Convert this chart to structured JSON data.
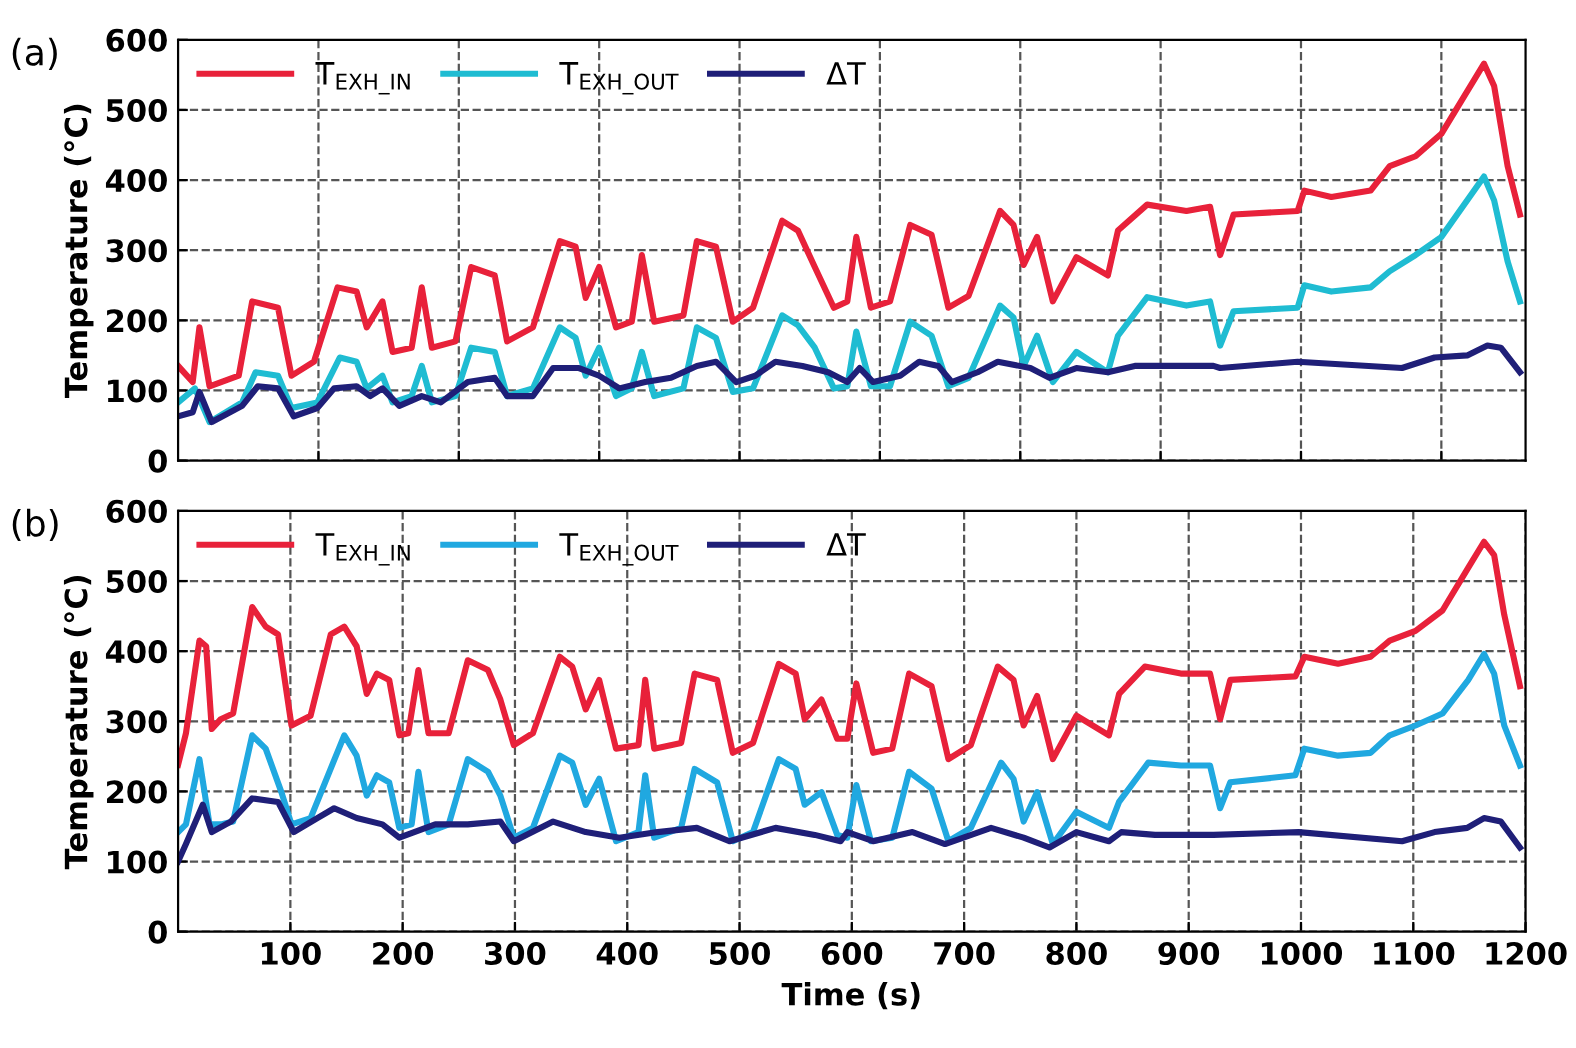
{
  "chart_data": [
    {
      "type": "line",
      "title": "(a)",
      "ylabel": "Temperature (°C)",
      "xlim": [
        0,
        1200
      ],
      "ylim": [
        0,
        600
      ],
      "yticks": [
        0,
        100,
        200,
        300,
        400,
        500,
        600
      ],
      "xticks": [
        {
          "value": 125,
          "label": null
        },
        {
          "value": 250,
          "label": null
        },
        {
          "value": 375,
          "label": null
        },
        {
          "value": 500,
          "label": null
        },
        {
          "value": 625,
          "label": null
        },
        {
          "value": 750,
          "label": null
        },
        {
          "value": 875,
          "label": null
        },
        {
          "value": 1000,
          "label": null
        },
        {
          "value": 1125,
          "label": null
        }
      ],
      "tick_labels": "y",
      "grid": true,
      "legend": "top left",
      "line_style": "solid",
      "marker": "none",
      "series": [
        {
          "name": "T$_{EXH_IN}$",
          "color": "#e8213a",
          "x": [
            0,
            13,
            19,
            28,
            54,
            66,
            89,
            101,
            121,
            142,
            159,
            168,
            182,
            191,
            208,
            217,
            226,
            247,
            261,
            282,
            293,
            316,
            340,
            354,
            363,
            375,
            390,
            404,
            413,
            424,
            450,
            462,
            479,
            494,
            512,
            538,
            552,
            567,
            584,
            596,
            604,
            617,
            634,
            652,
            671,
            686,
            704,
            732,
            744,
            753,
            765,
            779,
            800,
            828,
            837,
            863,
            898,
            919,
            928,
            940,
            997,
            1003,
            1027,
            1062,
            1079,
            1102,
            1125,
            1163,
            1172,
            1184,
            1195
          ],
          "values": [
            135,
            112,
            190,
            106,
            121,
            227,
            218,
            121,
            141,
            247,
            241,
            190,
            227,
            155,
            161,
            247,
            161,
            170,
            276,
            264,
            170,
            190,
            313,
            305,
            232,
            276,
            190,
            198,
            293,
            198,
            207,
            313,
            305,
            198,
            218,
            342,
            328,
            276,
            218,
            227,
            319,
            218,
            227,
            336,
            322,
            218,
            235,
            356,
            336,
            279,
            319,
            227,
            290,
            264,
            328,
            365,
            356,
            362,
            293,
            351,
            356,
            385,
            376,
            385,
            420,
            434,
            466,
            566,
            534,
            420,
            351
          ]
        },
        {
          "name": "T$_{EXH_OUT}$",
          "color": "#1fbcd2",
          "x": [
            0,
            15,
            28,
            57,
            69,
            89,
            101,
            124,
            144,
            159,
            168,
            182,
            191,
            208,
            217,
            226,
            247,
            261,
            282,
            293,
            316,
            340,
            354,
            363,
            375,
            390,
            404,
            413,
            424,
            450,
            462,
            479,
            494,
            512,
            538,
            552,
            567,
            584,
            596,
            604,
            617,
            634,
            652,
            671,
            686,
            704,
            732,
            744,
            753,
            765,
            779,
            800,
            828,
            837,
            863,
            898,
            919,
            928,
            940,
            997,
            1003,
            1027,
            1062,
            1079,
            1102,
            1125,
            1163,
            1172,
            1184,
            1195
          ],
          "values": [
            83,
            103,
            55,
            83,
            126,
            121,
            75,
            83,
            147,
            141,
            103,
            121,
            83,
            92,
            135,
            83,
            92,
            161,
            155,
            92,
            103,
            190,
            175,
            121,
            161,
            92,
            103,
            155,
            92,
            103,
            190,
            175,
            98,
            103,
            207,
            193,
            161,
            103,
            106,
            184,
            106,
            106,
            198,
            178,
            106,
            118,
            221,
            204,
            135,
            178,
            112,
            155,
            126,
            178,
            233,
            221,
            227,
            164,
            213,
            218,
            250,
            241,
            247,
            270,
            293,
            319,
            405,
            371,
            284,
            227
          ]
        },
        {
          "name": "ΔT",
          "color": "#1f1f78",
          "x": [
            0,
            13,
            19,
            30,
            57,
            71,
            89,
            103,
            124,
            139,
            159,
            171,
            182,
            197,
            217,
            234,
            258,
            282,
            293,
            316,
            334,
            357,
            375,
            393,
            416,
            439,
            462,
            479,
            497,
            514,
            532,
            556,
            579,
            596,
            607,
            619,
            643,
            660,
            677,
            689,
            712,
            730,
            759,
            776,
            800,
            828,
            852,
            887,
            922,
            928,
            997,
            1090,
            1119,
            1148,
            1166,
            1178,
            1195
          ],
          "values": [
            63,
            69,
            98,
            55,
            78,
            106,
            103,
            63,
            75,
            103,
            106,
            92,
            103,
            78,
            92,
            83,
            112,
            118,
            92,
            92,
            132,
            132,
            121,
            103,
            112,
            118,
            135,
            141,
            112,
            121,
            141,
            135,
            126,
            112,
            132,
            112,
            121,
            141,
            135,
            112,
            126,
            141,
            132,
            118,
            132,
            126,
            135,
            135,
            135,
            132,
            141,
            132,
            147,
            150,
            164,
            161,
            126
          ]
        }
      ]
    },
    {
      "type": "line",
      "title": "(b)",
      "xlabel": "Time (s)",
      "ylabel": "Temperature (°C)",
      "xlim": [
        0,
        1200
      ],
      "ylim": [
        0,
        600
      ],
      "yticks": [
        0,
        100,
        200,
        300,
        400,
        500,
        600
      ],
      "xticks": [
        100,
        200,
        300,
        400,
        500,
        600,
        700,
        800,
        900,
        1000,
        1100,
        1200
      ],
      "grid": true,
      "legend": "top left",
      "line_style": "solid",
      "marker": "none",
      "series": [
        {
          "name": "T$_{EXH_IN}$",
          "color": "#e8213a",
          "x": [
            0,
            7,
            19,
            25,
            30,
            38,
            49,
            66,
            78,
            89,
            101,
            118,
            136,
            148,
            159,
            168,
            177,
            188,
            197,
            205,
            214,
            223,
            241,
            258,
            276,
            287,
            299,
            316,
            340,
            351,
            363,
            375,
            390,
            410,
            416,
            424,
            448,
            460,
            480,
            494,
            512,
            535,
            550,
            558,
            573,
            587,
            596,
            604,
            619,
            636,
            651,
            671,
            686,
            706,
            730,
            744,
            753,
            765,
            779,
            800,
            829,
            838,
            861,
            893,
            919,
            928,
            937,
            995,
            1003,
            1033,
            1062,
            1079,
            1102,
            1126,
            1149,
            1163,
            1172,
            1181,
            1195
          ],
          "values": [
            238,
            283,
            415,
            407,
            289,
            303,
            311,
            463,
            435,
            424,
            294,
            308,
            424,
            435,
            407,
            339,
            368,
            359,
            280,
            283,
            373,
            283,
            283,
            387,
            373,
            331,
            266,
            283,
            392,
            378,
            317,
            359,
            261,
            266,
            359,
            261,
            269,
            368,
            359,
            255,
            269,
            382,
            368,
            303,
            331,
            275,
            275,
            354,
            255,
            261,
            368,
            350,
            246,
            266,
            378,
            359,
            294,
            336,
            246,
            308,
            280,
            339,
            378,
            368,
            368,
            303,
            359,
            364,
            392,
            382,
            392,
            415,
            429,
            458,
            519,
            556,
            537,
            452,
            350
          ]
        },
        {
          "name": "T$_{EXH_OUT}$",
          "color": "#20a8e0",
          "x": [
            0,
            7,
            19,
            28,
            38,
            49,
            66,
            78,
            92,
            101,
            118,
            148,
            159,
            168,
            177,
            188,
            197,
            208,
            214,
            223,
            241,
            258,
            276,
            287,
            299,
            316,
            340,
            351,
            363,
            375,
            390,
            410,
            416,
            424,
            448,
            460,
            480,
            494,
            512,
            535,
            550,
            558,
            573,
            587,
            596,
            604,
            617,
            636,
            651,
            671,
            686,
            706,
            733,
            744,
            753,
            765,
            779,
            800,
            829,
            838,
            864,
            893,
            919,
            928,
            937,
            995,
            1003,
            1033,
            1062,
            1079,
            1102,
            1126,
            1149,
            1163,
            1172,
            1181,
            1195
          ],
          "values": [
            142,
            153,
            246,
            153,
            153,
            157,
            280,
            261,
            199,
            153,
            162,
            280,
            251,
            194,
            223,
            213,
            148,
            153,
            228,
            142,
            153,
            246,
            228,
            194,
            134,
            148,
            251,
            241,
            181,
            218,
            129,
            142,
            223,
            134,
            148,
            232,
            213,
            129,
            142,
            246,
            232,
            181,
            199,
            138,
            134,
            209,
            129,
            134,
            228,
            204,
            129,
            148,
            241,
            218,
            157,
            199,
            125,
            171,
            148,
            185,
            241,
            237,
            237,
            176,
            213,
            223,
            261,
            251,
            255,
            280,
            294,
            311,
            359,
            396,
            368,
            294,
            237
          ]
        },
        {
          "name": "ΔT",
          "color": "#1f1f78",
          "x": [
            0,
            7,
            22,
            30,
            47,
            66,
            89,
            103,
            124,
            139,
            159,
            182,
            197,
            229,
            258,
            287,
            299,
            334,
            363,
            393,
            427,
            462,
            491,
            532,
            567,
            590,
            596,
            619,
            654,
            683,
            724,
            753,
            776,
            800,
            829,
            840,
            870,
            922,
            998,
            1090,
            1119,
            1148,
            1163,
            1178,
            1195
          ],
          "values": [
            100,
            125,
            181,
            142,
            157,
            190,
            185,
            142,
            162,
            176,
            162,
            153,
            134,
            153,
            153,
            157,
            129,
            157,
            142,
            134,
            142,
            148,
            129,
            148,
            138,
            129,
            142,
            129,
            142,
            125,
            148,
            134,
            120,
            142,
            129,
            142,
            138,
            138,
            142,
            129,
            142,
            148,
            162,
            157,
            120
          ]
        }
      ]
    }
  ]
}
